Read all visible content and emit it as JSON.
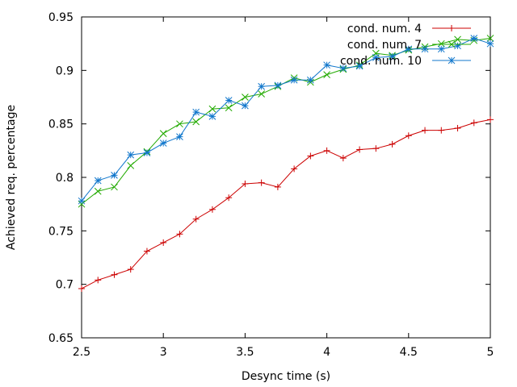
{
  "chart_data": {
    "type": "line",
    "title": "",
    "xlabel": "Desync time (s)",
    "ylabel": "Achieved req. percentage",
    "xlim": [
      2.5,
      5
    ],
    "ylim": [
      0.65,
      0.95
    ],
    "xticks": [
      2.5,
      3,
      3.5,
      4,
      4.5,
      5
    ],
    "yticks": [
      0.65,
      0.7,
      0.75,
      0.8,
      0.85,
      0.9,
      0.95
    ],
    "xtick_labels": [
      "2.5",
      "3",
      "3.5",
      "4",
      "4.5",
      "5"
    ],
    "ytick_labels": [
      "0.65",
      "0.7",
      "0.75",
      "0.8",
      "0.85",
      "0.9",
      "0.95"
    ],
    "grid": false,
    "legend_position": "top-right",
    "x": [
      2.5,
      2.6,
      2.7,
      2.8,
      2.9,
      3.0,
      3.1,
      3.2,
      3.3,
      3.4,
      3.5,
      3.6,
      3.7,
      3.8,
      3.9,
      4.0,
      4.1,
      4.2,
      4.3,
      4.4,
      4.5,
      4.6,
      4.7,
      4.8,
      4.9,
      5.0
    ],
    "series": [
      {
        "name": "cond. num. 4",
        "color": "#cc0000",
        "marker": "plus",
        "values": [
          0.696,
          0.704,
          0.709,
          0.714,
          0.731,
          0.739,
          0.747,
          0.761,
          0.77,
          0.781,
          0.794,
          0.795,
          0.791,
          0.808,
          0.82,
          0.825,
          0.818,
          0.826,
          0.827,
          0.831,
          0.839,
          0.844,
          0.844,
          0.846,
          0.851,
          0.854
        ]
      },
      {
        "name": "cond. num. 7",
        "color": "#22aa00",
        "marker": "cross",
        "values": [
          0.775,
          0.787,
          0.791,
          0.811,
          0.824,
          0.841,
          0.85,
          0.852,
          0.864,
          0.865,
          0.875,
          0.878,
          0.885,
          0.893,
          0.889,
          0.896,
          0.901,
          0.905,
          0.916,
          0.914,
          0.919,
          0.922,
          0.925,
          0.929,
          0.928,
          0.93
        ]
      },
      {
        "name": "cond. num. 10",
        "color": "#1177cc",
        "marker": "star",
        "values": [
          0.778,
          0.797,
          0.802,
          0.821,
          0.823,
          0.832,
          0.838,
          0.861,
          0.857,
          0.872,
          0.867,
          0.885,
          0.886,
          0.891,
          0.891,
          0.905,
          0.902,
          0.904,
          0.912,
          0.913,
          0.92,
          0.92,
          0.92,
          0.923,
          0.93,
          0.925
        ]
      }
    ]
  }
}
